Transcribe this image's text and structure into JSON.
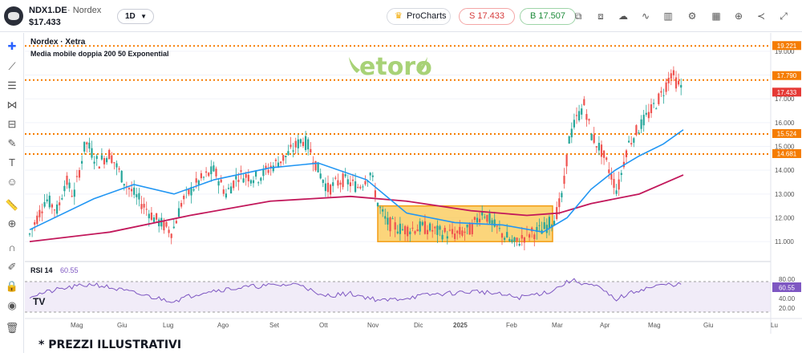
{
  "header": {
    "symbol": "NDX1.DE",
    "dot": "·",
    "exchange": "Nordex",
    "price": "$17.433",
    "timeframe": "1D",
    "prochart_label": "ProCharts",
    "sell_label": "S 17.433",
    "buy_label": "B 17.507"
  },
  "toolbar_icons": [
    "drawing-sets-icon",
    "layers-icon",
    "cloud-icon",
    "indicator-icon",
    "candle-icon",
    "settings-icon",
    "calendar-icon",
    "add-icon",
    "share-icon",
    "expand-icon"
  ],
  "sidebar_icons": [
    "crosshair-icon",
    "trendline-icon",
    "fib-icon",
    "pattern-icon",
    "projection-icon",
    "brush-icon",
    "text-icon",
    "emoji-icon",
    "ruler-icon",
    "zoom-icon",
    "magnet-icon",
    "lock-drawing-icon",
    "lock-icon",
    "eye-icon",
    "trash-icon"
  ],
  "legend": {
    "title": "Nordex · Xetra",
    "indicator": "Media mobile doppia 200 50 Exponential"
  },
  "watermark": "etoro",
  "price_axis": {
    "ticks": [
      "19.000",
      "18.000",
      "17.000",
      "16.000",
      "15.000",
      "14.000",
      "13.000",
      "12.000",
      "11.000"
    ],
    "levels": [
      {
        "label": "19.221",
        "value": 19.221,
        "color": "#f57c00"
      },
      {
        "label": "17.790",
        "value": 17.79,
        "color": "#f57c00"
      },
      {
        "label": "17.433",
        "value": 17.433,
        "color": "#e53935"
      },
      {
        "label": "15.524",
        "value": 15.524,
        "color": "#f57c00"
      },
      {
        "label": "14.681",
        "value": 14.681,
        "color": "#f57c00"
      }
    ]
  },
  "rsi": {
    "label": "RSI 14",
    "value": "60.55",
    "ticks": [
      "80.00",
      "40.00",
      "20.00"
    ],
    "current_label": "60.55"
  },
  "time_axis": {
    "labels": [
      "Mag",
      "Giu",
      "Lug",
      "Ago",
      "Set",
      "Ott",
      "Nov",
      "Dic",
      "2025",
      "Feb",
      "Mar",
      "Apr",
      "Mag",
      "Giu",
      "Lu"
    ]
  },
  "tv_logo": "TV",
  "disclaimer": "* PREZZI ILLUSTRATIVI",
  "chart_data": {
    "type": "candlestick",
    "ylim": [
      10.5,
      19.5
    ],
    "rsi_ylim": [
      0,
      100
    ],
    "close_path": [
      [
        0,
        11.3
      ],
      [
        20,
        12.8
      ],
      [
        35,
        12.3
      ],
      [
        45,
        13.6
      ],
      [
        55,
        12.9
      ],
      [
        70,
        15.2
      ],
      [
        85,
        14.3
      ],
      [
        100,
        14.7
      ],
      [
        120,
        13.4
      ],
      [
        140,
        12.6
      ],
      [
        155,
        12.0
      ],
      [
        170,
        11.6
      ],
      [
        178,
        11.4
      ],
      [
        190,
        12.7
      ],
      [
        210,
        13.5
      ],
      [
        230,
        14.0
      ],
      [
        245,
        13.0
      ],
      [
        260,
        13.8
      ],
      [
        285,
        13.7
      ],
      [
        300,
        14.1
      ],
      [
        320,
        14.6
      ],
      [
        340,
        15.3
      ],
      [
        348,
        15.0
      ],
      [
        360,
        14.0
      ],
      [
        372,
        13.2
      ],
      [
        390,
        13.6
      ],
      [
        410,
        13.3
      ],
      [
        425,
        13.9
      ],
      [
        435,
        12.5
      ],
      [
        445,
        11.8
      ],
      [
        465,
        11.5
      ],
      [
        490,
        11.6
      ],
      [
        510,
        11.4
      ],
      [
        530,
        11.3
      ],
      [
        550,
        11.5
      ],
      [
        565,
        12.3
      ],
      [
        578,
        11.7
      ],
      [
        590,
        11.3
      ],
      [
        605,
        10.9
      ],
      [
        620,
        11.3
      ],
      [
        640,
        11.5
      ],
      [
        655,
        12.0
      ],
      [
        665,
        13.0
      ],
      [
        672,
        15.2
      ],
      [
        680,
        16.0
      ],
      [
        692,
        16.8
      ],
      [
        700,
        15.5
      ],
      [
        713,
        14.8
      ],
      [
        725,
        13.8
      ],
      [
        733,
        13.1
      ],
      [
        745,
        15.0
      ],
      [
        760,
        15.8
      ],
      [
        775,
        16.5
      ],
      [
        790,
        17.3
      ],
      [
        800,
        18.1
      ],
      [
        808,
        17.6
      ],
      [
        815,
        17.43
      ]
    ],
    "ma50": [
      [
        0,
        11.5
      ],
      [
        80,
        12.8
      ],
      [
        130,
        13.4
      ],
      [
        180,
        13.0
      ],
      [
        230,
        13.6
      ],
      [
        300,
        14.1
      ],
      [
        360,
        14.3
      ],
      [
        420,
        13.6
      ],
      [
        470,
        12.2
      ],
      [
        530,
        11.8
      ],
      [
        590,
        11.7
      ],
      [
        640,
        11.4
      ],
      [
        670,
        12.0
      ],
      [
        700,
        13.2
      ],
      [
        730,
        14.0
      ],
      [
        760,
        14.6
      ],
      [
        790,
        15.1
      ],
      [
        815,
        15.7
      ]
    ],
    "ma200": [
      [
        0,
        11.0
      ],
      [
        100,
        11.4
      ],
      [
        200,
        12.1
      ],
      [
        300,
        12.7
      ],
      [
        400,
        12.9
      ],
      [
        470,
        12.7
      ],
      [
        550,
        12.3
      ],
      [
        620,
        12.1
      ],
      [
        660,
        12.2
      ],
      [
        700,
        12.6
      ],
      [
        760,
        13.0
      ],
      [
        815,
        13.8
      ]
    ],
    "box": {
      "x_start": "Nov",
      "x_end": "Feb",
      "y_low": 11.0,
      "y_high": 12.5
    },
    "rsi_series": [
      [
        0,
        45
      ],
      [
        40,
        60
      ],
      [
        80,
        70
      ],
      [
        120,
        55
      ],
      [
        160,
        40
      ],
      [
        180,
        35
      ],
      [
        220,
        55
      ],
      [
        280,
        65
      ],
      [
        340,
        70
      ],
      [
        360,
        45
      ],
      [
        400,
        50
      ],
      [
        440,
        35
      ],
      [
        500,
        48
      ],
      [
        560,
        55
      ],
      [
        610,
        42
      ],
      [
        650,
        55
      ],
      [
        675,
        78
      ],
      [
        690,
        72
      ],
      [
        710,
        62
      ],
      [
        730,
        38
      ],
      [
        760,
        58
      ],
      [
        790,
        68
      ],
      [
        810,
        70
      ],
      [
        815,
        60.55
      ]
    ]
  }
}
